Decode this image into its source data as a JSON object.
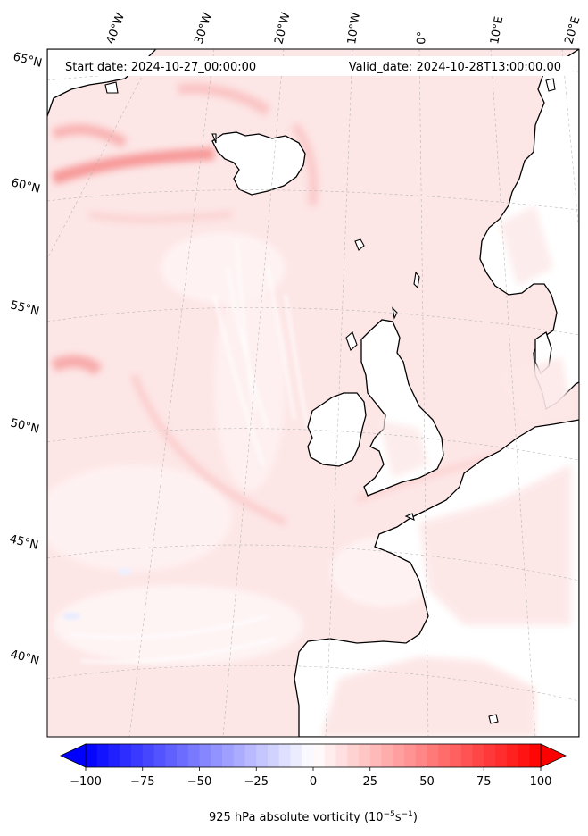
{
  "header": {
    "start_date": "Start date: 2024-10-27_00:00:00",
    "valid_date": "Valid_date: 2024-10-28T13:00:00.00"
  },
  "longitude_labels": [
    "40°W",
    "30°W",
    "20°W",
    "10°W",
    "0°",
    "10°E",
    "20°E"
  ],
  "latitude_labels": [
    "65°N",
    "60°N",
    "55°N",
    "50°N",
    "45°N",
    "40°N"
  ],
  "colorbar": {
    "ticks": [
      -100,
      -75,
      -50,
      -25,
      0,
      25,
      50,
      75,
      100
    ],
    "tick_labels": [
      "−100",
      "−75",
      "−50",
      "−25",
      "0",
      "25",
      "50",
      "75",
      "100"
    ],
    "range": [
      -100,
      100
    ],
    "levels": 40,
    "colormap": "bwr",
    "extend": "both",
    "label_main": "925 hPa absolute vorticity (10",
    "label_exp1": "−5",
    "label_mid": "s",
    "label_exp2": "−1",
    "label_end": ")"
  },
  "colors": {
    "negative_end": "#0000ff",
    "neutral": "#ffffff",
    "positive_end": "#ff0000",
    "coastline": "#000000",
    "gridline": "#b0b0b0"
  }
}
